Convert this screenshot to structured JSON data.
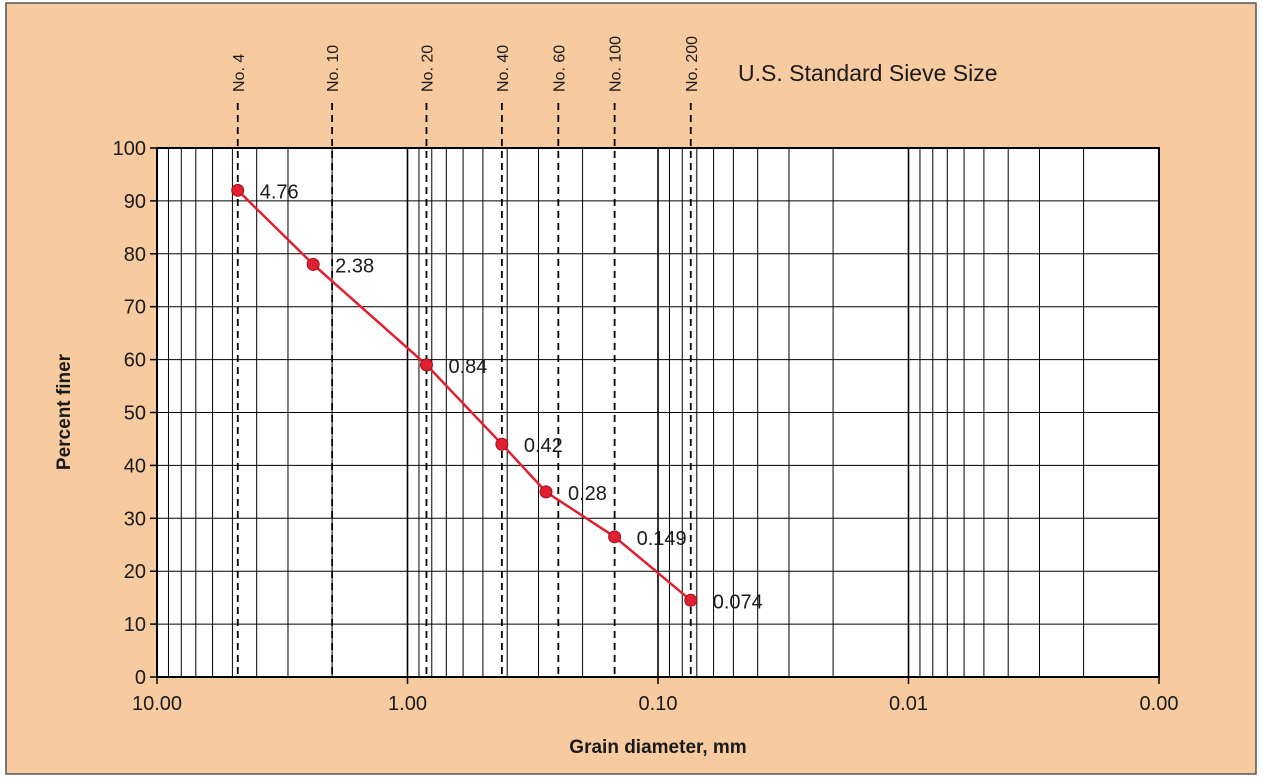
{
  "colors": {
    "background": "#f7caa0",
    "plot_area": "#ffffff",
    "series": "#e0202e",
    "grid": "#000000"
  },
  "chart_data": {
    "type": "line",
    "x_scale": "log",
    "x_reversed": true,
    "xlabel": "Grain diameter, mm",
    "ylabel": "Percent finer",
    "xlim": [
      10,
      0.001
    ],
    "ylim": [
      0,
      100
    ],
    "grid": true,
    "x_tick_labels": [
      "10.00",
      "1.00",
      "0.10",
      "0.01",
      "0.00"
    ],
    "y_ticks": [
      0,
      10,
      20,
      30,
      40,
      50,
      60,
      70,
      80,
      90,
      100
    ],
    "sieve_title": "U.S. Standard Sieve Size",
    "sieves": [
      {
        "label": "No. 4",
        "size": 4.76
      },
      {
        "label": "No. 10",
        "size": 2.0
      },
      {
        "label": "No. 20",
        "size": 0.84
      },
      {
        "label": "No. 40",
        "size": 0.42
      },
      {
        "label": "No. 60",
        "size": 0.25
      },
      {
        "label": "No. 100",
        "size": 0.149
      },
      {
        "label": "No. 200",
        "size": 0.074
      }
    ],
    "series": [
      {
        "points": [
          {
            "x": 4.76,
            "y": 92,
            "label": "4.76"
          },
          {
            "x": 2.38,
            "y": 78,
            "label": "2.38"
          },
          {
            "x": 0.84,
            "y": 59,
            "label": "0.84"
          },
          {
            "x": 0.42,
            "y": 44,
            "label": "0.42"
          },
          {
            "x": 0.28,
            "y": 35,
            "label": "0.28"
          },
          {
            "x": 0.149,
            "y": 26.5,
            "label": "0.149"
          },
          {
            "x": 0.074,
            "y": 14.5,
            "label": "0.074"
          }
        ]
      }
    ]
  }
}
